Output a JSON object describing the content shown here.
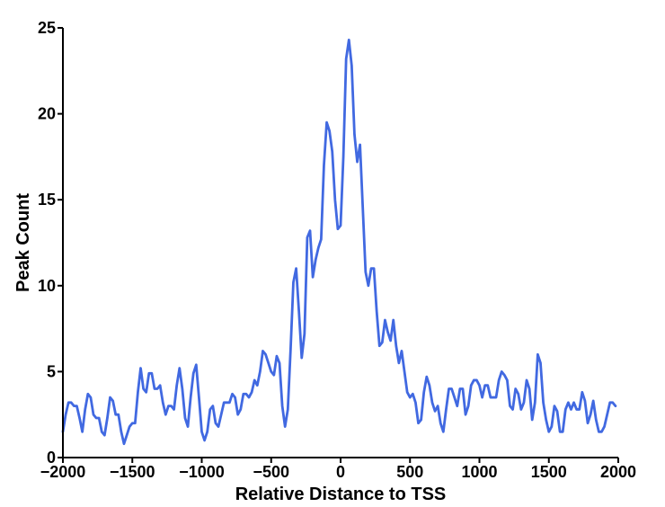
{
  "chart_data": {
    "type": "line",
    "title": "",
    "xlabel": "Relative Distance to TSS",
    "ylabel": "Peak Count",
    "xlim": [
      -2000,
      2000
    ],
    "ylim": [
      0,
      25
    ],
    "xticks": [
      -2000,
      -1500,
      -1000,
      -500,
      0,
      500,
      1000,
      1500,
      2000
    ],
    "xtick_labels": [
      "−2000",
      "−1500",
      "−1000",
      "−500",
      "0",
      "500",
      "1000",
      "1500",
      "2000"
    ],
    "yticks": [
      0,
      5,
      10,
      15,
      20,
      25
    ],
    "ytick_labels": [
      "0",
      "5",
      "10",
      "15",
      "20",
      "25"
    ],
    "grid": false,
    "colors": {
      "line": "#4169E1",
      "axis": "#000000"
    },
    "series": [
      {
        "x": [
          -2000,
          -1980,
          -1960,
          -1940,
          -1920,
          -1900,
          -1880,
          -1860,
          -1840,
          -1820,
          -1800,
          -1780,
          -1760,
          -1740,
          -1720,
          -1700,
          -1680,
          -1660,
          -1640,
          -1620,
          -1600,
          -1580,
          -1560,
          -1540,
          -1520,
          -1500,
          -1480,
          -1460,
          -1440,
          -1420,
          -1400,
          -1380,
          -1360,
          -1340,
          -1320,
          -1300,
          -1280,
          -1260,
          -1240,
          -1220,
          -1200,
          -1180,
          -1160,
          -1140,
          -1120,
          -1100,
          -1080,
          -1060,
          -1040,
          -1020,
          -1000,
          -980,
          -960,
          -940,
          -920,
          -900,
          -880,
          -860,
          -840,
          -820,
          -800,
          -780,
          -760,
          -740,
          -720,
          -700,
          -680,
          -660,
          -640,
          -620,
          -600,
          -580,
          -560,
          -540,
          -520,
          -500,
          -480,
          -460,
          -440,
          -420,
          -400,
          -380,
          -360,
          -340,
          -320,
          -300,
          -280,
          -260,
          -240,
          -220,
          -200,
          -180,
          -160,
          -140,
          -120,
          -100,
          -80,
          -60,
          -40,
          -20,
          0,
          20,
          40,
          60,
          80,
          100,
          120,
          140,
          160,
          180,
          200,
          220,
          240,
          260,
          280,
          300,
          320,
          340,
          360,
          380,
          400,
          420,
          440,
          460,
          480,
          500,
          520,
          540,
          560,
          580,
          600,
          620,
          640,
          660,
          680,
          700,
          720,
          740,
          760,
          780,
          800,
          820,
          840,
          860,
          880,
          900,
          920,
          940,
          960,
          980,
          1000,
          1020,
          1040,
          1060,
          1080,
          1100,
          1120,
          1140,
          1160,
          1180,
          1200,
          1220,
          1240,
          1260,
          1280,
          1300,
          1320,
          1340,
          1360,
          1380,
          1400,
          1420,
          1440,
          1460,
          1480,
          1500,
          1520,
          1540,
          1560,
          1580,
          1600,
          1620,
          1640,
          1660,
          1680,
          1700,
          1720,
          1740,
          1760,
          1780,
          1800,
          1820,
          1840,
          1860,
          1880,
          1900,
          1920,
          1940,
          1960,
          1980
        ],
        "values": [
          1.5,
          2.5,
          3.2,
          3.2,
          3.0,
          3.0,
          2.3,
          1.5,
          2.8,
          3.7,
          3.5,
          2.5,
          2.3,
          2.3,
          1.5,
          1.3,
          2.3,
          3.5,
          3.3,
          2.5,
          2.5,
          1.5,
          0.8,
          1.3,
          1.8,
          2.0,
          2.0,
          3.8,
          5.2,
          4.0,
          3.8,
          4.9,
          4.9,
          4.0,
          4.0,
          4.2,
          3.2,
          2.5,
          3.0,
          3.0,
          2.8,
          4.2,
          5.2,
          4.0,
          2.3,
          1.8,
          3.5,
          4.9,
          5.4,
          3.5,
          1.5,
          1.0,
          1.5,
          2.8,
          3.0,
          2.0,
          1.8,
          2.5,
          3.2,
          3.2,
          3.2,
          3.7,
          3.5,
          2.5,
          2.8,
          3.7,
          3.7,
          3.5,
          3.8,
          4.5,
          4.2,
          5.0,
          6.2,
          6.0,
          5.5,
          5.0,
          4.8,
          5.9,
          5.5,
          3.0,
          1.8,
          2.8,
          6.3,
          10.2,
          11.0,
          8.5,
          5.8,
          7.2,
          12.8,
          13.2,
          10.5,
          11.5,
          12.2,
          12.7,
          17.0,
          19.5,
          19.0,
          17.8,
          15.0,
          13.3,
          13.5,
          17.5,
          23.2,
          24.3,
          22.8,
          18.8,
          17.2,
          18.2,
          14.5,
          10.8,
          10.0,
          11.0,
          11.0,
          8.5,
          6.5,
          6.7,
          8.0,
          7.3,
          6.8,
          8.0,
          6.5,
          5.5,
          6.2,
          5.0,
          3.8,
          3.5,
          3.7,
          3.2,
          2.0,
          2.2,
          3.8,
          4.7,
          4.2,
          3.2,
          2.7,
          3.0,
          2.0,
          1.5,
          2.8,
          4.0,
          4.0,
          3.5,
          3.0,
          4.0,
          4.0,
          2.5,
          3.0,
          4.2,
          4.5,
          4.5,
          4.2,
          3.5,
          4.2,
          4.2,
          3.5,
          3.5,
          3.5,
          4.5,
          5.0,
          4.8,
          4.5,
          3.0,
          2.8,
          4.0,
          3.7,
          2.8,
          3.2,
          4.5,
          4.0,
          2.2,
          3.2,
          6.0,
          5.5,
          3.2,
          2.2,
          1.5,
          1.8,
          3.0,
          2.7,
          1.5,
          1.5,
          2.8,
          3.2,
          2.8,
          3.2,
          2.8,
          2.8,
          3.8,
          3.3,
          2.0,
          2.5,
          3.3,
          2.2,
          1.5,
          1.5,
          1.8,
          2.5,
          3.2,
          3.2,
          3.0
        ]
      }
    ]
  }
}
